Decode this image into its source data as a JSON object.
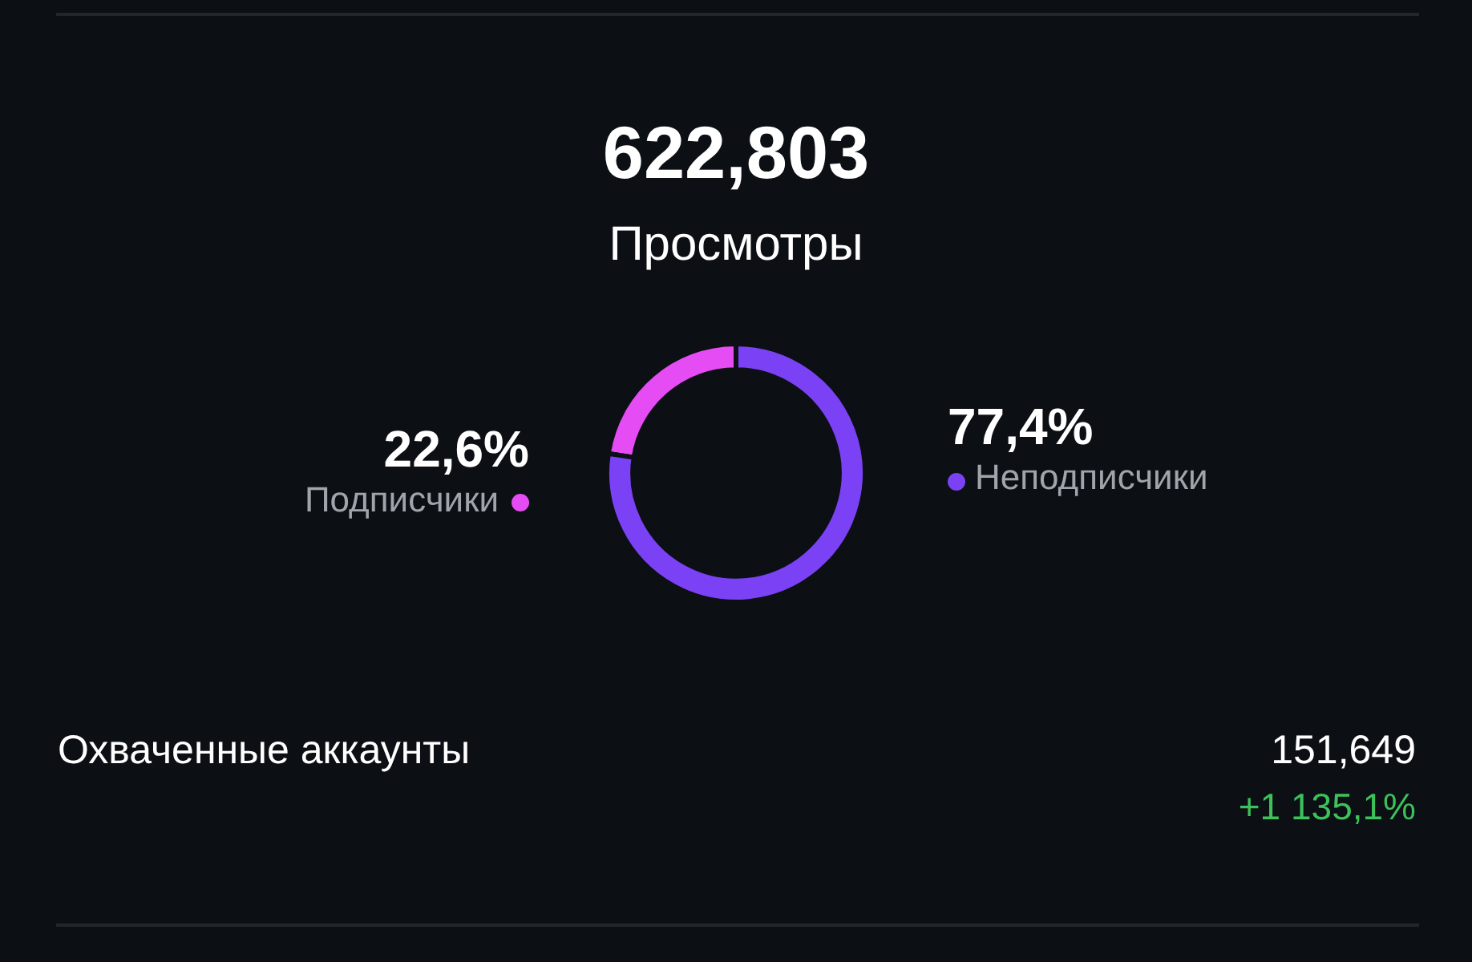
{
  "chart_data": {
    "type": "donut",
    "title": "622,803",
    "subtitle": "Просмотры",
    "categories": [
      "Подписчики",
      "Неподписчики"
    ],
    "values": [
      22.6,
      77.4
    ],
    "value_labels": [
      "22,6%",
      "77,4%"
    ],
    "colors": [
      "#e64cf4",
      "#7b41f5"
    ],
    "annotations": [
      "Охваченные аккаунты",
      "151,649",
      "+1 135,1%"
    ]
  }
}
